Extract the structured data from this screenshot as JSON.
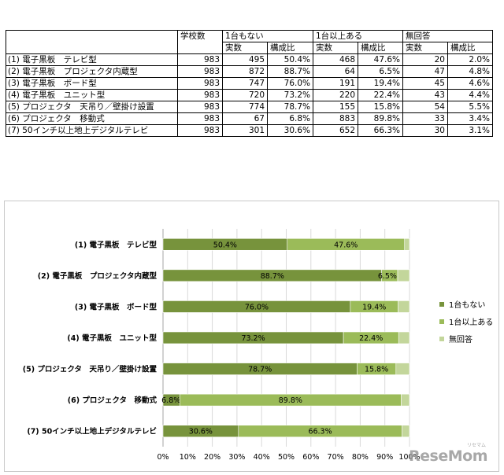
{
  "table": {
    "headers_top": [
      "",
      "学校数",
      "1台もない",
      "1台以上ある",
      "無回答"
    ],
    "headers_sub": [
      "実数",
      "構成比",
      "実数",
      "構成比",
      "実数",
      "構成比"
    ],
    "rows": [
      {
        "label": "(1) 電子黒板　テレビ型",
        "schools": "983",
        "none_n": "495",
        "none_p": "50.4%",
        "some_n": "468",
        "some_p": "47.6%",
        "na_n": "20",
        "na_p": "2.0%"
      },
      {
        "label": "(2) 電子黒板　プロジェクタ内蔵型",
        "schools": "983",
        "none_n": "872",
        "none_p": "88.7%",
        "some_n": "64",
        "some_p": "6.5%",
        "na_n": "47",
        "na_p": "4.8%"
      },
      {
        "label": "(3) 電子黒板　ボード型",
        "schools": "983",
        "none_n": "747",
        "none_p": "76.0%",
        "some_n": "191",
        "some_p": "19.4%",
        "na_n": "45",
        "na_p": "4.6%"
      },
      {
        "label": "(4) 電子黒板　ユニット型",
        "schools": "983",
        "none_n": "720",
        "none_p": "73.2%",
        "some_n": "220",
        "some_p": "22.4%",
        "na_n": "43",
        "na_p": "4.4%"
      },
      {
        "label": "(5) プロジェクタ　天吊り／壁掛け設置",
        "schools": "983",
        "none_n": "774",
        "none_p": "78.7%",
        "some_n": "155",
        "some_p": "15.8%",
        "na_n": "54",
        "na_p": "5.5%"
      },
      {
        "label": "(6) プロジェクタ　移動式",
        "schools": "983",
        "none_n": "67",
        "none_p": "6.8%",
        "some_n": "883",
        "some_p": "89.8%",
        "na_n": "33",
        "na_p": "3.4%"
      },
      {
        "label": "(7) 50インチ以上地上デジタルテレビ",
        "schools": "983",
        "none_n": "301",
        "none_p": "30.6%",
        "some_n": "652",
        "some_p": "66.3%",
        "na_n": "30",
        "na_p": "3.1%"
      }
    ]
  },
  "chart_data": {
    "type": "bar",
    "orientation": "horizontal",
    "stacked": "percent",
    "categories": [
      "(1) 電子黒板　テレビ型",
      "(2) 電子黒板　プロジェクタ内蔵型",
      "(3) 電子黒板　ボード型",
      "(4) 電子黒板　ユニット型",
      "(5) プロジェクタ　天吊り／壁掛け設置",
      "(6) プロジェクタ　移動式",
      "(7) 50インチ以上地上デジタルテレビ"
    ],
    "series": [
      {
        "name": "1台もない",
        "values": [
          50.4,
          88.7,
          76.0,
          73.2,
          78.7,
          6.8,
          30.6
        ],
        "labels": [
          "50.4%",
          "88.7%",
          "76.0%",
          "73.2%",
          "78.7%",
          "6.8%",
          "30.6%"
        ],
        "color": "#77933c"
      },
      {
        "name": "1台以上ある",
        "values": [
          47.6,
          6.5,
          19.4,
          22.4,
          15.8,
          89.8,
          66.3
        ],
        "labels": [
          "47.6%",
          "6.5%",
          "19.4%",
          "22.4%",
          "15.8%",
          "89.8%",
          "66.3%"
        ],
        "color": "#9bbb59"
      },
      {
        "name": "無回答",
        "values": [
          2.0,
          4.8,
          4.6,
          4.4,
          5.5,
          3.4,
          3.1
        ],
        "color": "#c3d69b"
      }
    ],
    "xlim": [
      0,
      100
    ],
    "xticks": [
      "0%",
      "10%",
      "20%",
      "30%",
      "40%",
      "50%",
      "60%",
      "70%",
      "80%",
      "90%",
      "100%"
    ],
    "grid": true,
    "legend": "right"
  },
  "watermark": {
    "text": "ReseMom",
    "sub": "リセマム"
  }
}
